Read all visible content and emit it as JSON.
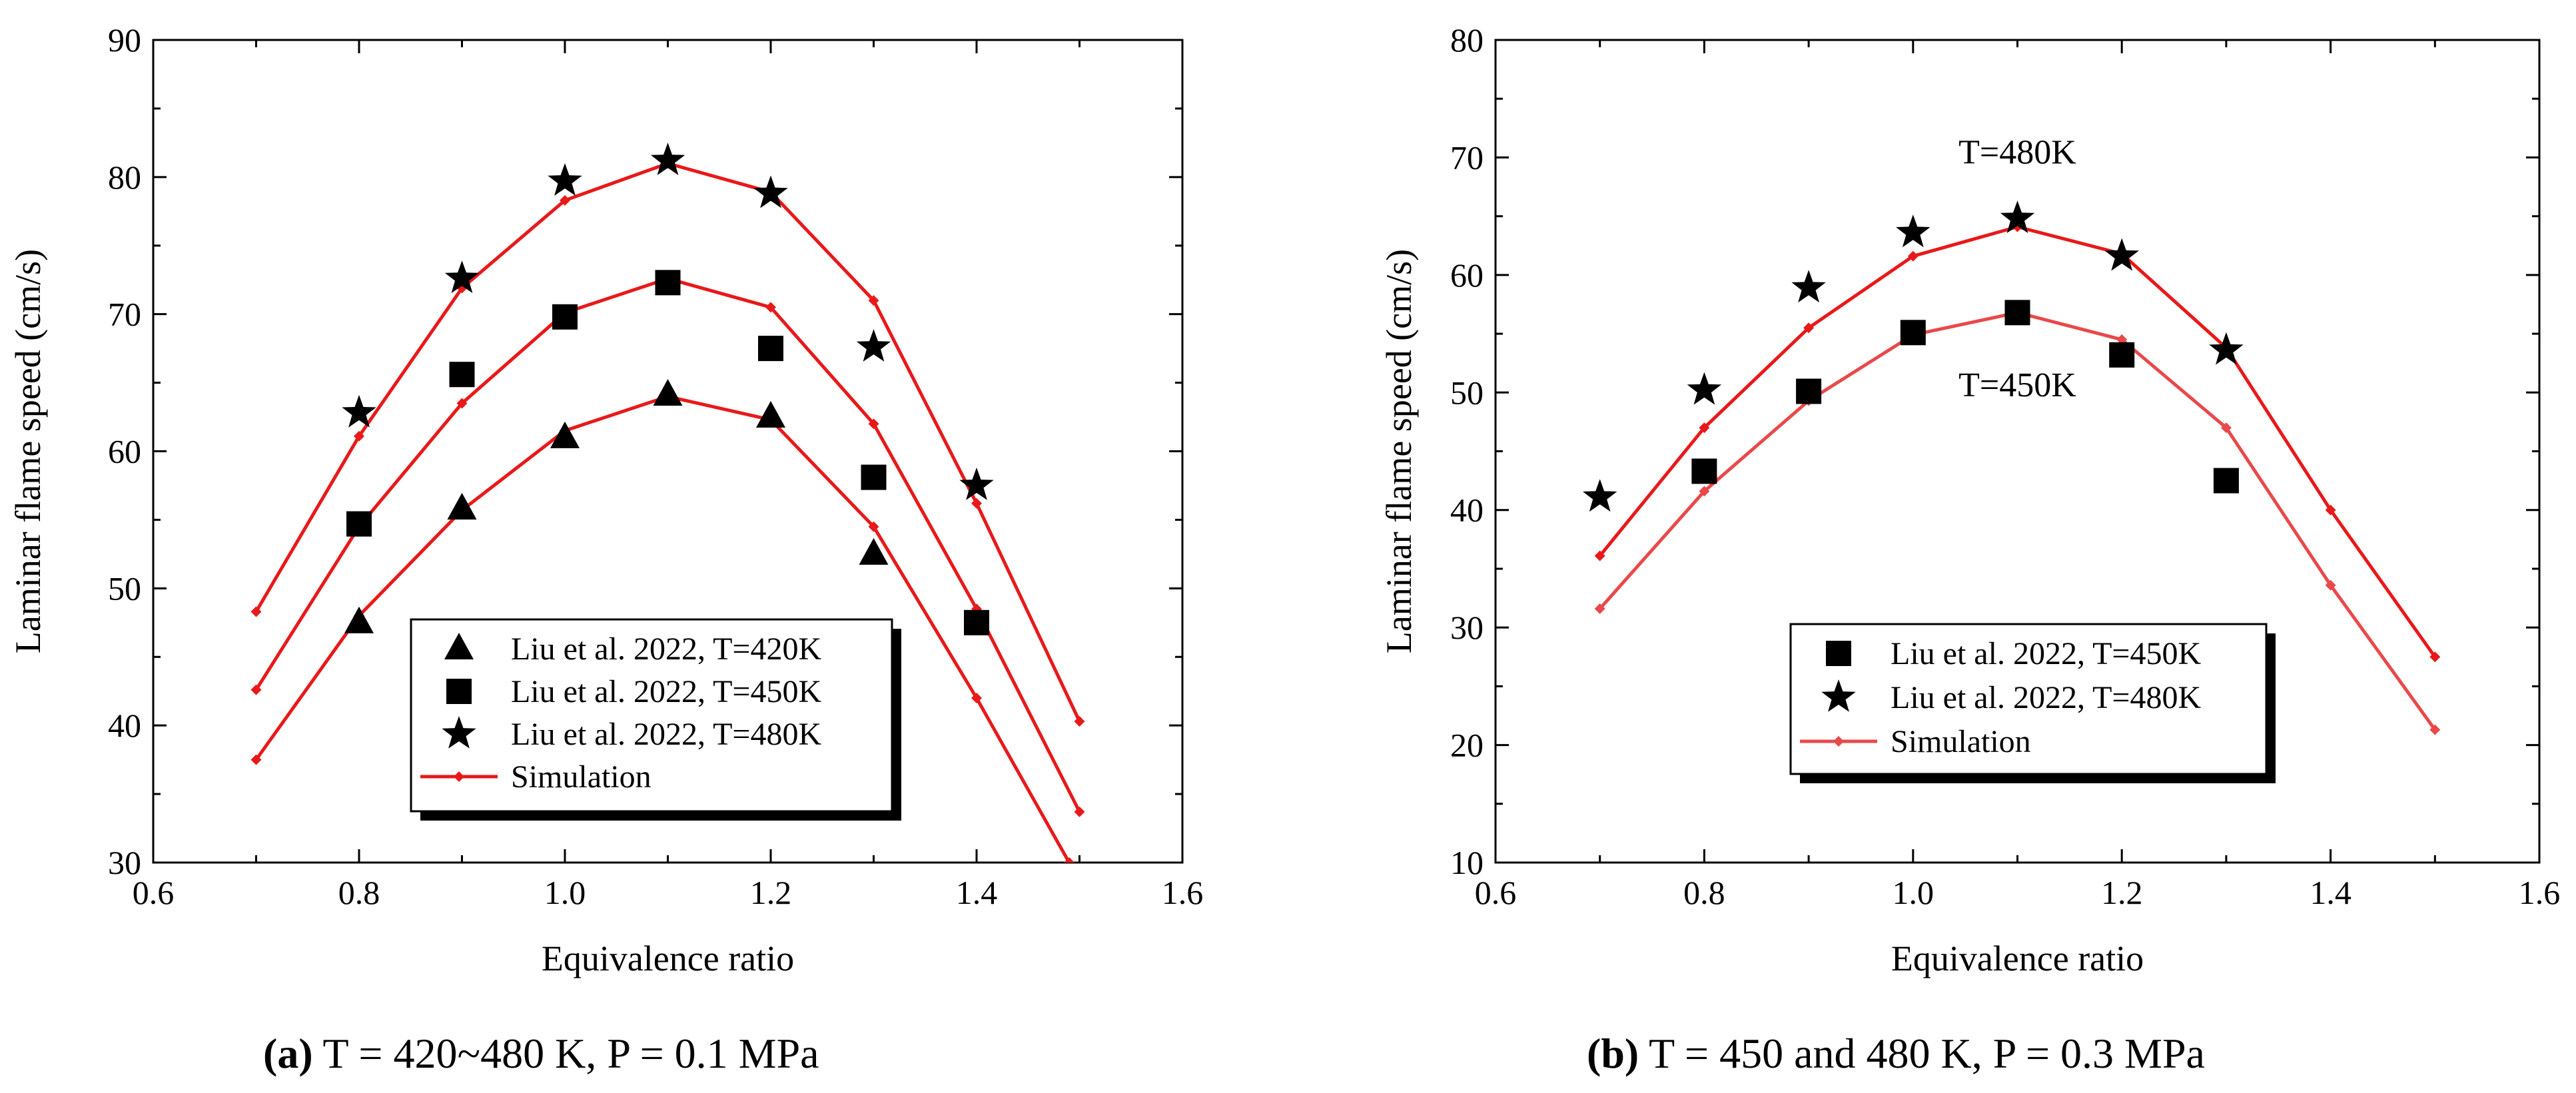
{
  "chart_data": [
    {
      "type": "line",
      "panel": "a",
      "xlabel": "Equivalence ratio",
      "ylabel": "Laminar flame speed (cm/s)",
      "xlim": [
        0.6,
        1.6
      ],
      "ylim": [
        30,
        90
      ],
      "xticks": [
        0.6,
        0.8,
        1.0,
        1.2,
        1.4,
        1.6
      ],
      "xtick_labels": [
        "0.6",
        "0.8",
        "1.0",
        "1.2",
        "1.4",
        "1.6"
      ],
      "yticks": [
        30,
        40,
        50,
        60,
        70,
        80,
        90
      ],
      "ytick_labels": [
        "30",
        "40",
        "50",
        "60",
        "70",
        "80",
        "90"
      ],
      "legend_position": "bottom-right",
      "series": [
        {
          "name": "Liu et al. 2022, T=420K",
          "kind": "scatter",
          "marker": "triangle",
          "x": [
            0.8,
            0.9,
            1.0,
            1.1,
            1.2,
            1.3
          ],
          "y": [
            47.5,
            55.8,
            61.0,
            64.1,
            62.5,
            52.5
          ]
        },
        {
          "name": "Liu et al. 2022, T=450K",
          "kind": "scatter",
          "marker": "square",
          "x": [
            0.8,
            0.9,
            1.0,
            1.1,
            1.2,
            1.3,
            1.4
          ],
          "y": [
            54.7,
            65.6,
            69.8,
            72.3,
            67.5,
            58.1,
            47.5
          ]
        },
        {
          "name": "Liu et al. 2022, T=480K",
          "kind": "scatter",
          "marker": "star",
          "x": [
            0.8,
            0.9,
            1.0,
            1.1,
            1.2,
            1.3,
            1.4
          ],
          "y": [
            62.8,
            72.6,
            79.7,
            81.2,
            78.8,
            67.6,
            57.5
          ]
        },
        {
          "name": "Simulation",
          "kind": "line",
          "marker": "diamond",
          "color": "#e8191a",
          "lines": [
            {
              "x": [
                0.7,
                0.8,
                0.9,
                1.0,
                1.1,
                1.2,
                1.3,
                1.4,
                1.5
              ],
              "y": [
                48.3,
                61.1,
                71.9,
                78.3,
                81.0,
                78.9,
                71.0,
                56.2,
                40.3
              ]
            },
            {
              "x": [
                0.7,
                0.8,
                0.9,
                1.0,
                1.1,
                1.2,
                1.3,
                1.4,
                1.5
              ],
              "y": [
                42.6,
                54.5,
                63.5,
                70.1,
                72.6,
                70.5,
                62.0,
                48.5,
                33.7
              ]
            },
            {
              "x": [
                0.7,
                0.8,
                0.9,
                1.0,
                1.1,
                1.2,
                1.3,
                1.4,
                1.49
              ],
              "y": [
                37.5,
                48.0,
                55.7,
                61.5,
                64.0,
                62.3,
                54.5,
                42.0,
                30.0
              ]
            }
          ]
        }
      ],
      "caption_label": "(a)",
      "caption_text": " T = 420~480 K, P = 0.1 MPa"
    },
    {
      "type": "line",
      "panel": "b",
      "xlabel": "Equivalence ratio",
      "ylabel": "Laminar flame speed (cm/s)",
      "xlim": [
        0.6,
        1.6
      ],
      "ylim": [
        10,
        80
      ],
      "xticks": [
        0.6,
        0.8,
        1.0,
        1.2,
        1.4,
        1.6
      ],
      "xtick_labels": [
        "0.6",
        "0.8",
        "1.0",
        "1.2",
        "1.4",
        "1.6"
      ],
      "yticks": [
        10,
        20,
        30,
        40,
        50,
        60,
        70,
        80
      ],
      "ytick_labels": [
        "10",
        "20",
        "30",
        "40",
        "50",
        "60",
        "70",
        "80"
      ],
      "legend_position": "bottom-center",
      "annotations": [
        {
          "text": "T=480K",
          "x": 1.1,
          "y": 70.5
        },
        {
          "text": "T=450K",
          "x": 1.1,
          "y": 50.7
        }
      ],
      "series": [
        {
          "name": "Liu et al. 2022, T=450K",
          "kind": "scatter",
          "marker": "square",
          "x": [
            0.8,
            0.9,
            1.0,
            1.1,
            1.2,
            1.3
          ],
          "y": [
            43.3,
            50.1,
            55.1,
            56.8,
            53.2,
            42.5
          ]
        },
        {
          "name": "Liu et al. 2022, T=480K",
          "kind": "scatter",
          "marker": "star",
          "x": [
            0.7,
            0.8,
            0.9,
            1.0,
            1.1,
            1.2,
            1.3
          ],
          "y": [
            41.1,
            50.2,
            58.9,
            63.6,
            64.8,
            61.6,
            53.6
          ]
        },
        {
          "name": "Simulation",
          "kind": "line",
          "marker": "diamond",
          "color": "#e8494a",
          "lines": [
            {
              "x": [
                0.7,
                0.8,
                0.9,
                1.0,
                1.1,
                1.2,
                1.3,
                1.4,
                1.5
              ],
              "y": [
                36.1,
                47.0,
                55.5,
                61.6,
                64.1,
                61.8,
                53.8,
                40.0,
                27.5
              ],
              "color": "#e8191a"
            },
            {
              "x": [
                0.7,
                0.8,
                0.9,
                1.0,
                1.1,
                1.2,
                1.3,
                1.4,
                1.5
              ],
              "y": [
                31.6,
                41.6,
                49.3,
                54.9,
                56.8,
                54.5,
                47.0,
                33.6,
                21.3
              ],
              "color": "#e8494a"
            }
          ]
        }
      ],
      "caption_label": "(b)",
      "caption_text": " T = 450 and 480 K, P = 0.3 MPa"
    }
  ]
}
